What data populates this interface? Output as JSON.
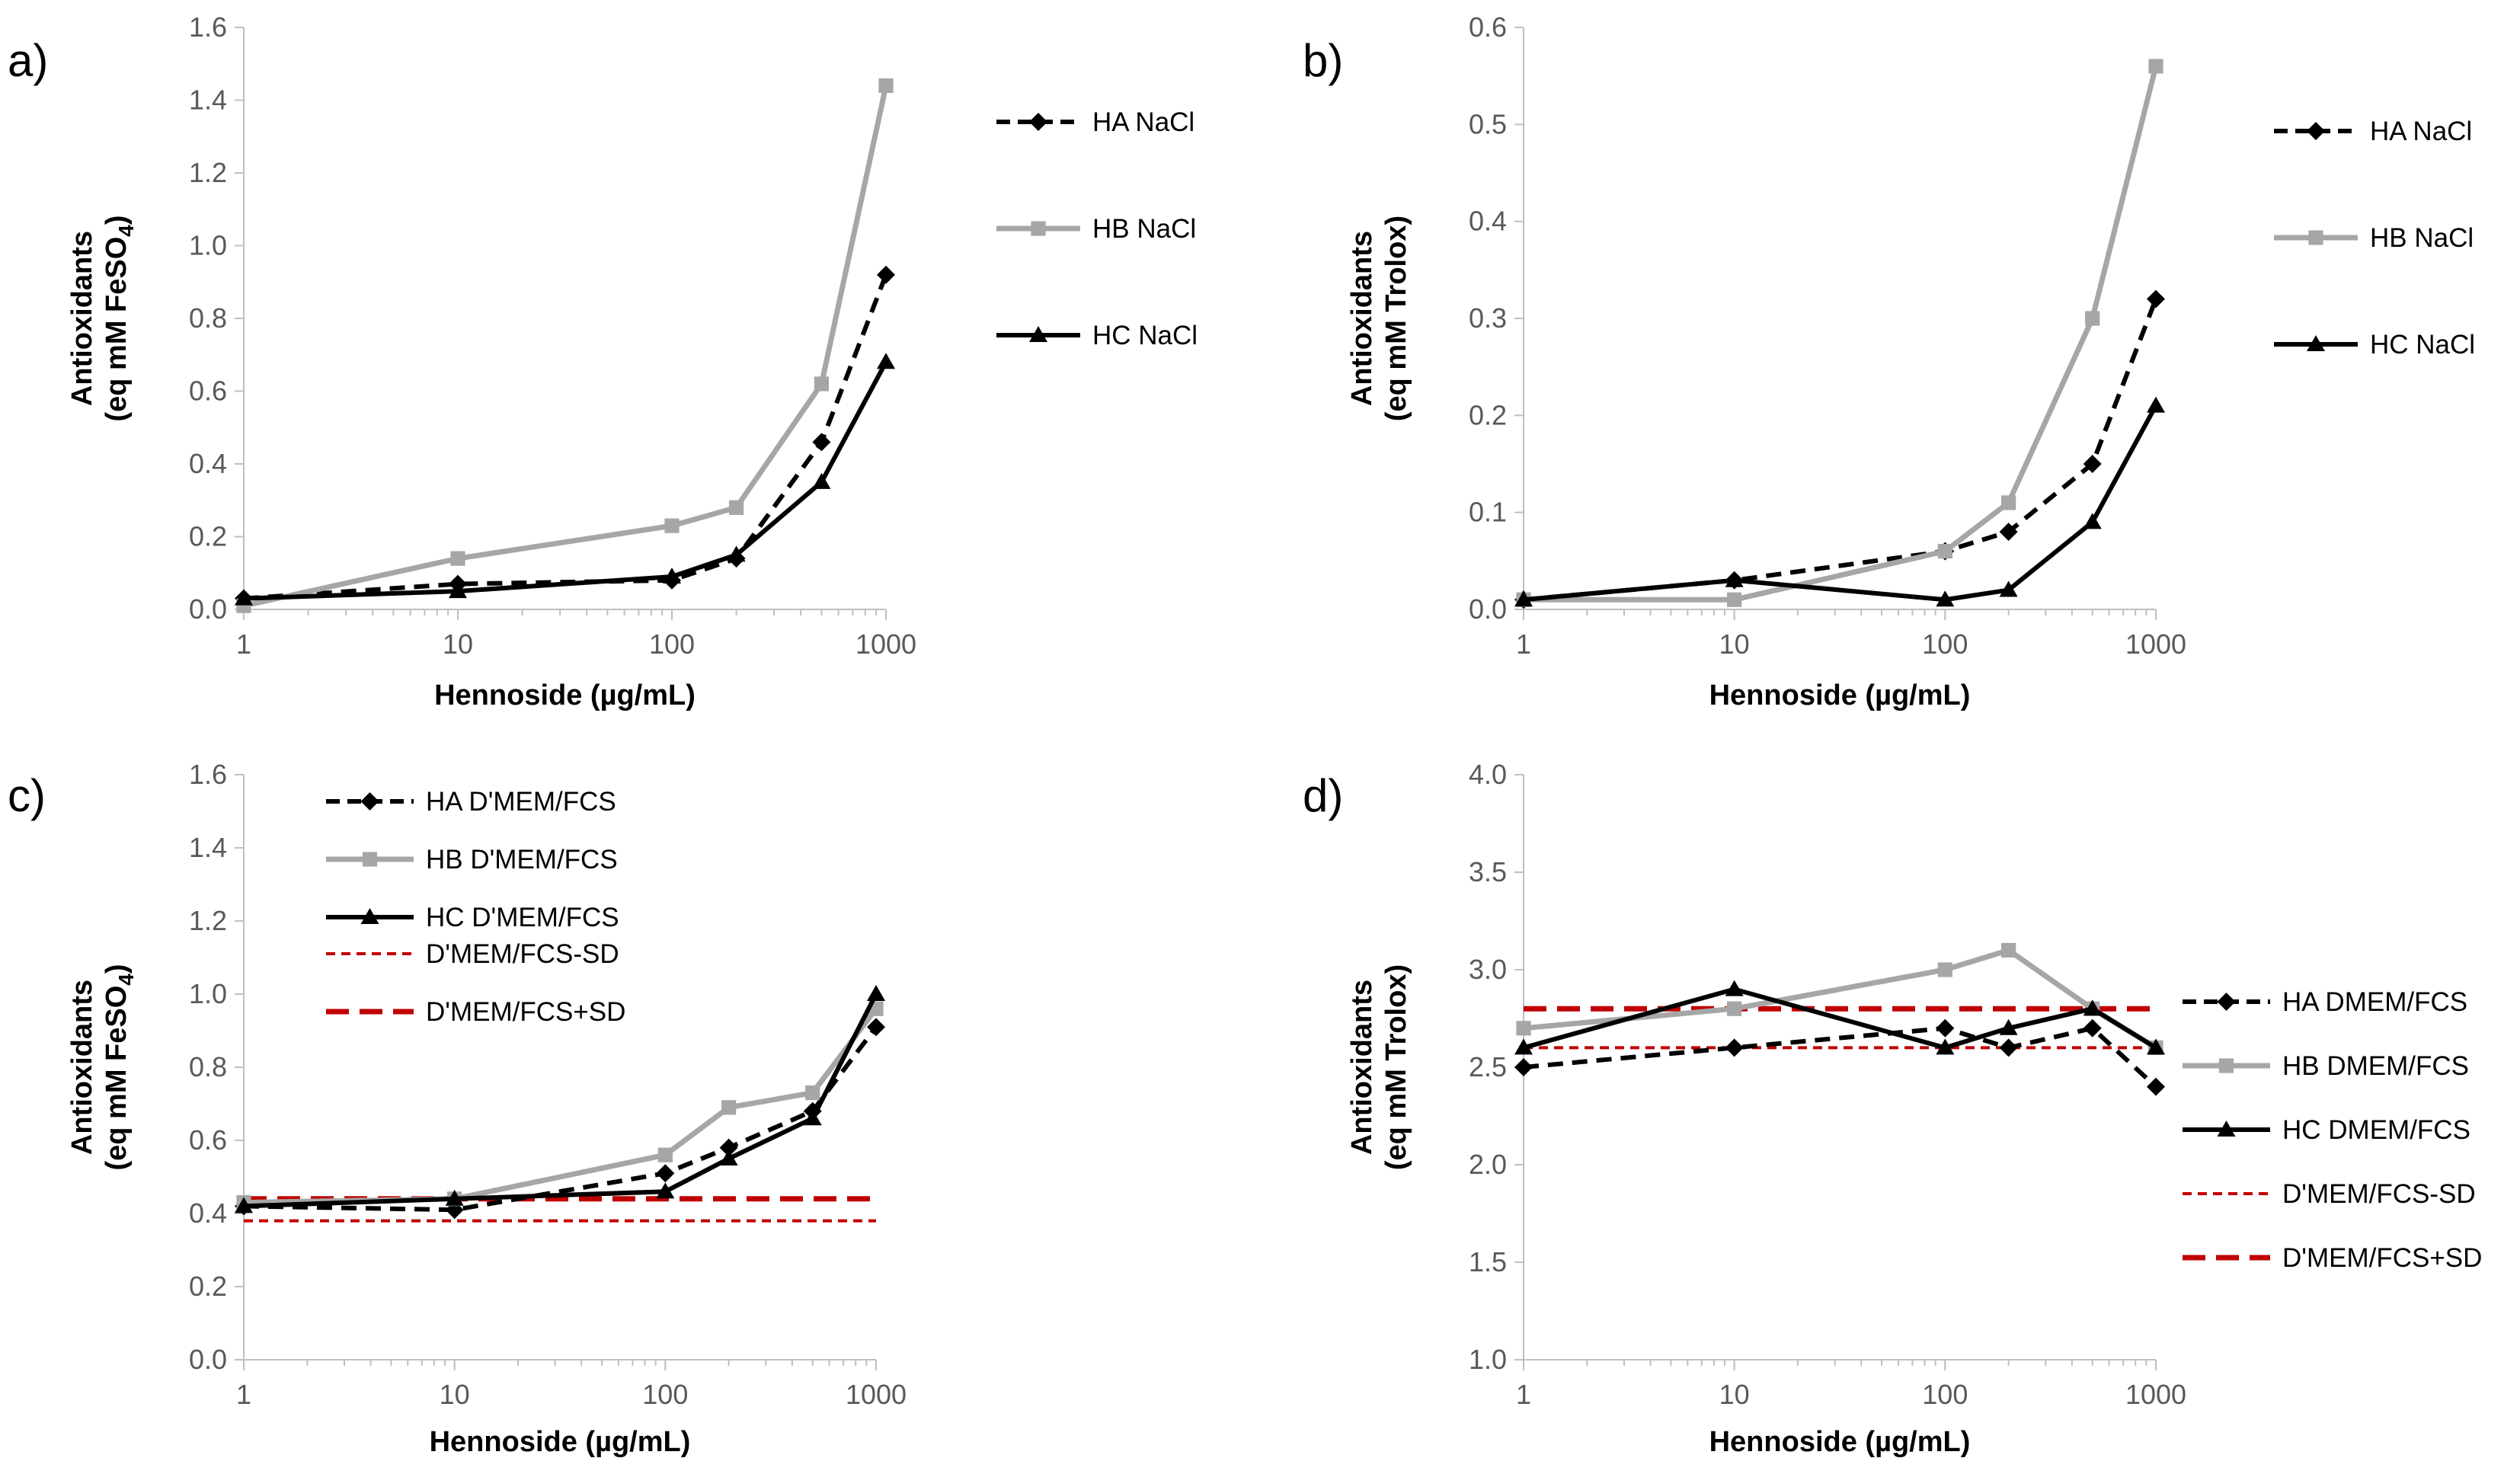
{
  "chart_data": [
    {
      "panel": "a)",
      "type": "line",
      "x_scale": "log",
      "x": [
        1,
        10,
        100,
        200,
        500,
        1000
      ],
      "xlabel": "Hennoside (µg/mL)",
      "ylabel_line1": "Antioxidants",
      "ylabel_line2_pre": "(eq mM FeSO",
      "ylabel_line2_sub": "4",
      "ylabel_line2_post": ")",
      "ylim": [
        0,
        1.6
      ],
      "ytick_step": 0.2,
      "xticks": [
        1,
        10,
        100,
        1000
      ],
      "legend_position": "top-right",
      "series": [
        {
          "name": "HA NaCl",
          "color": "#000000",
          "dash": "dashed",
          "marker": "diamond",
          "values": [
            0.03,
            0.07,
            0.08,
            0.14,
            0.46,
            0.92
          ]
        },
        {
          "name": "HB NaCl",
          "color": "#a6a6a6",
          "dash": "solid",
          "marker": "square",
          "values": [
            0.01,
            0.14,
            0.23,
            0.28,
            0.62,
            1.44
          ]
        },
        {
          "name": "HC NaCl",
          "color": "#000000",
          "dash": "solid",
          "marker": "triangle",
          "values": [
            0.03,
            0.05,
            0.09,
            0.15,
            0.35,
            0.68
          ]
        }
      ],
      "reference_lines": []
    },
    {
      "panel": "b)",
      "type": "line",
      "x_scale": "log",
      "x": [
        1,
        10,
        100,
        200,
        500,
        1000
      ],
      "xlabel": "Hennoside (µg/mL)",
      "ylabel_line1": "Antioxidants",
      "ylabel_line2_pre": "(eq mM Trolox)",
      "ylabel_line2_sub": "",
      "ylabel_line2_post": "",
      "ylim": [
        0,
        0.6
      ],
      "ytick_step": 0.1,
      "xticks": [
        1,
        10,
        100,
        1000
      ],
      "legend_position": "right",
      "series": [
        {
          "name": "HA NaCl",
          "color": "#000000",
          "dash": "dashed",
          "marker": "diamond",
          "values": [
            0.01,
            0.03,
            0.06,
            0.08,
            0.15,
            0.32
          ]
        },
        {
          "name": "HB NaCl",
          "color": "#a6a6a6",
          "dash": "solid",
          "marker": "square",
          "values": [
            0.01,
            0.01,
            0.06,
            0.11,
            0.3,
            0.56
          ]
        },
        {
          "name": "HC NaCl",
          "color": "#000000",
          "dash": "solid",
          "marker": "triangle",
          "values": [
            0.01,
            0.03,
            0.01,
            0.02,
            0.09,
            0.21
          ]
        }
      ],
      "reference_lines": []
    },
    {
      "panel": "c)",
      "type": "line",
      "x_scale": "log",
      "x": [
        1,
        10,
        100,
        200,
        500,
        1000
      ],
      "xlabel": "Hennoside (µg/mL)",
      "ylabel_line1": "Antioxidants",
      "ylabel_line2_pre": "(eq mM FeSO",
      "ylabel_line2_sub": "4",
      "ylabel_line2_post": ")",
      "ylim": [
        0,
        1.6
      ],
      "ytick_step": 0.2,
      "xticks": [
        1,
        10,
        100,
        1000
      ],
      "legend_position": "top-left",
      "series": [
        {
          "name": "HA D'MEM/FCS",
          "color": "#000000",
          "dash": "dashed",
          "marker": "diamond",
          "values": [
            0.42,
            0.41,
            0.51,
            0.58,
            0.68,
            0.91
          ]
        },
        {
          "name": "HB D'MEM/FCS",
          "color": "#a6a6a6",
          "dash": "solid",
          "marker": "square",
          "values": [
            0.43,
            0.44,
            0.56,
            0.69,
            0.73,
            0.96
          ]
        },
        {
          "name": "HC D'MEM/FCS",
          "color": "#000000",
          "dash": "solid",
          "marker": "triangle",
          "values": [
            0.42,
            0.44,
            0.46,
            0.55,
            0.66,
            1.0
          ]
        }
      ],
      "reference_lines": [
        {
          "name": "D'MEM/FCS-SD",
          "color": "#c00000",
          "style": "short-dash",
          "value": 0.38
        },
        {
          "name": "D'MEM/FCS+SD",
          "color": "#c00000",
          "style": "long-dash",
          "value": 0.44
        }
      ]
    },
    {
      "panel": "d)",
      "type": "line",
      "x_scale": "log",
      "x": [
        1,
        10,
        100,
        200,
        500,
        1000
      ],
      "xlabel": "Hennoside (µg/mL)",
      "ylabel_line1": "Antioxidants",
      "ylabel_line2_pre": "(eq mM Trolox)",
      "ylabel_line2_sub": "",
      "ylabel_line2_post": "",
      "ylim": [
        1.0,
        4.0
      ],
      "ytick_step": 0.5,
      "xticks": [
        1,
        10,
        100,
        1000
      ],
      "legend_position": "right",
      "series": [
        {
          "name": "HA DMEM/FCS",
          "color": "#000000",
          "dash": "dashed",
          "marker": "diamond",
          "values": [
            2.5,
            2.6,
            2.7,
            2.6,
            2.7,
            2.4
          ]
        },
        {
          "name": "HB DMEM/FCS",
          "color": "#a6a6a6",
          "dash": "solid",
          "marker": "square",
          "values": [
            2.7,
            2.8,
            3.0,
            3.1,
            2.8,
            2.6
          ]
        },
        {
          "name": "HC DMEM/FCS",
          "color": "#000000",
          "dash": "solid",
          "marker": "triangle",
          "values": [
            2.6,
            2.9,
            2.6,
            2.7,
            2.8,
            2.6
          ]
        }
      ],
      "reference_lines": [
        {
          "name": "D'MEM/FCS-SD",
          "color": "#c00000",
          "style": "short-dash",
          "value": 2.6
        },
        {
          "name": "D'MEM/FCS+SD",
          "color": "#c00000",
          "style": "long-dash",
          "value": 2.8
        }
      ]
    }
  ]
}
